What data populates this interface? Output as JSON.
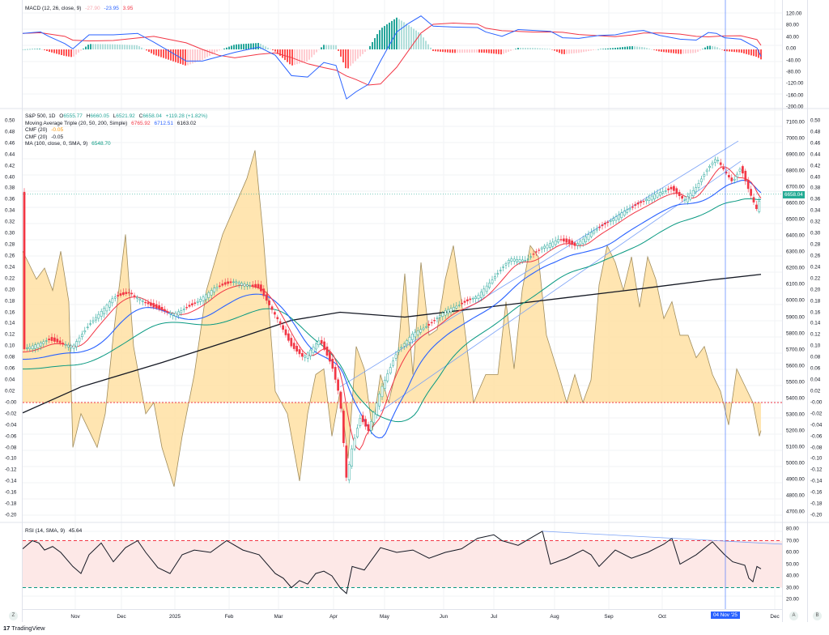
{
  "app": {
    "brand": "TradingView",
    "logo_glyph": "17"
  },
  "macd": {
    "title": "MACD (12, 26, close, 9)",
    "hist_val": "-27.90",
    "macd_val": "-23.95",
    "signal_val": "3.95",
    "colors": {
      "macd": "#2962ff",
      "signal": "#f23645",
      "hist_up": "#26a69a",
      "hist_down": "#ff5252",
      "hist_up_light": "#b2dfdb",
      "hist_down_light": "#ffcdd2"
    },
    "ticks": [
      "120.00",
      "80.00",
      "40.00",
      "0.00",
      "-40.00",
      "-80.00",
      "-120.00",
      "-160.00",
      "-200.00"
    ]
  },
  "main": {
    "symbol": "S&P 500, 1D",
    "open_label": "O",
    "open": "6555.77",
    "high_label": "H",
    "high": "6660.05",
    "low_label": "L",
    "low": "6521.92",
    "close_label": "C",
    "close": "6658.04",
    "change": "+119.28 (+1.82%)",
    "ma_triple_title": "Moving Average Triple (20, 50, 200, Simple)",
    "ma20": "6765.92",
    "ma50": "6712.51",
    "ma200": "6163.02",
    "cmf1_title": "CMF (20)",
    "cmf1_val": "-0.05",
    "cmf2_title": "CMF (20)",
    "cmf2_val": "-0.05",
    "ma100_title": "MA (100, close, 0, SMA, 9)",
    "ma100_val": "6548.70",
    "last_price_tag": "6658.04",
    "price_ticks": [
      "7100.00",
      "7000.00",
      "6900.00",
      "6800.00",
      "6700.00",
      "6600.00",
      "6500.00",
      "6400.00",
      "6300.00",
      "6200.00",
      "6100.00",
      "6000.00",
      "5900.00",
      "5800.00",
      "5700.00",
      "5600.00",
      "5500.00",
      "5400.00",
      "5300.00",
      "5200.00",
      "5100.00",
      "5000.00",
      "4900.00",
      "4800.00",
      "4700.00"
    ],
    "cmf_ticks": [
      "0.50",
      "0.48",
      "0.46",
      "0.44",
      "0.42",
      "0.40",
      "0.38",
      "0.36",
      "0.34",
      "0.32",
      "0.30",
      "0.28",
      "0.26",
      "0.24",
      "0.22",
      "0.20",
      "0.18",
      "0.16",
      "0.14",
      "0.12",
      "0.10",
      "0.08",
      "0.06",
      "0.04",
      "0.02",
      "-0.00",
      "-0.02",
      "-0.04",
      "-0.06",
      "-0.08",
      "-0.10",
      "-0.12",
      "-0.14",
      "-0.16",
      "-0.18",
      "-0.20"
    ],
    "colors": {
      "up": "#26a69a",
      "down": "#f23645",
      "ma20": "#f23645",
      "ma50": "#2962ff",
      "ma100": "#089981",
      "ma200": "#131722",
      "cmf_fill": "#ffe0a3",
      "cmf_line": "#a08c5b",
      "channel": "#7aa2f7"
    }
  },
  "rsi": {
    "title": "RSI (14, SMA, 9)",
    "value": "45.64",
    "ticks": [
      "80.00",
      "70.00",
      "60.00",
      "50.00",
      "40.00",
      "30.00",
      "20.00"
    ],
    "colors": {
      "line": "#131722",
      "band": "#fde8e7",
      "upper": "#f23645",
      "lower": "#089981",
      "trend": "#7aa2f7"
    }
  },
  "time_axis": {
    "labels": [
      "Nov",
      "Dec",
      "2025",
      "Feb",
      "Mar",
      "Apr",
      "May",
      "Jun",
      "Jul",
      "Aug",
      "Sep",
      "Oct",
      "Dec"
    ],
    "crosshair_date": "04 Nov '25",
    "buttons": {
      "timezone": "Z",
      "auto": "A",
      "log": "B"
    }
  },
  "chart_data": [
    {
      "type": "line",
      "title": "MACD (12, 26, close, 9)",
      "series": [
        {
          "name": "MACD",
          "last": -23.95
        },
        {
          "name": "Signal",
          "last": 3.95
        },
        {
          "name": "Histogram",
          "last": -27.9
        }
      ],
      "ylim": [
        -200,
        120
      ],
      "annotations": [
        "MACD low ~ -170 in April 2025",
        "MACD peak ~ 115 late May 2025"
      ]
    },
    {
      "type": "candlestick",
      "title": "S&P 500, 1D",
      "x": [
        "Oct 2024",
        "Nov",
        "Dec",
        "2025",
        "Feb",
        "Mar",
        "Apr",
        "May",
        "Jun",
        "Jul",
        "Aug",
        "Sep",
        "Oct",
        "Nov",
        "Dec"
      ],
      "ohlc_last": {
        "open": 6555.77,
        "high": 6660.05,
        "low": 6521.92,
        "close": 6658.04,
        "change": 119.28,
        "change_pct": 1.82
      },
      "approx_close": [
        5750,
        5720,
        6050,
        5900,
        6100,
        5600,
        5300,
        5900,
        6000,
        6250,
        6400,
        6550,
        6700,
        6850,
        6658
      ],
      "series": [
        {
          "name": "MA20",
          "last": 6765.92
        },
        {
          "name": "MA50",
          "last": 6712.51
        },
        {
          "name": "MA100",
          "last": 6548.7
        },
        {
          "name": "MA200",
          "last": 6163.02
        },
        {
          "name": "CMF (20)",
          "last": -0.05,
          "ylim": [
            -0.2,
            0.5
          ]
        }
      ],
      "ylim": [
        4700,
        7100
      ],
      "annotations": [
        "Ascending channel from April 2025 lows",
        "Crosshair at 04 Nov '25",
        "Year low ~4835 (Apr 2025)",
        "High ~6920 (late Oct 2025)"
      ]
    },
    {
      "type": "line",
      "title": "RSI (14, SMA, 9)",
      "series": [
        {
          "name": "RSI",
          "last": 45.64
        }
      ],
      "ylim": [
        20,
        80
      ],
      "bands": [
        30,
        70
      ],
      "annotations": [
        "Descending trendline from Jul 2025 RSI peak (bearish divergence)"
      ]
    }
  ]
}
